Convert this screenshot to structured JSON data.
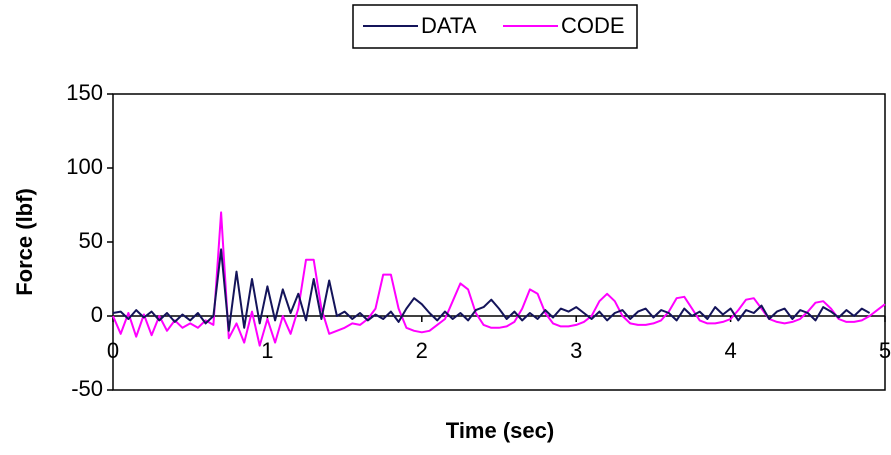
{
  "chart_data": {
    "type": "line",
    "xlabel": "Time (sec)",
    "ylabel": "Force (lbf)",
    "x": [
      0,
      0.05,
      0.1,
      0.15,
      0.2,
      0.25,
      0.3,
      0.35,
      0.4,
      0.45,
      0.5,
      0.55,
      0.6,
      0.65,
      0.7,
      0.75,
      0.8,
      0.85,
      0.9,
      0.95,
      1,
      1.05,
      1.1,
      1.15,
      1.2,
      1.25,
      1.3,
      1.35,
      1.4,
      1.45,
      1.5,
      1.55,
      1.6,
      1.65,
      1.7,
      1.75,
      1.8,
      1.85,
      1.9,
      1.95,
      2,
      2.05,
      2.1,
      2.15,
      2.2,
      2.25,
      2.3,
      2.35,
      2.4,
      2.45,
      2.5,
      2.55,
      2.6,
      2.65,
      2.7,
      2.75,
      2.8,
      2.85,
      2.9,
      2.95,
      3,
      3.05,
      3.1,
      3.15,
      3.2,
      3.25,
      3.3,
      3.35,
      3.4,
      3.45,
      3.5,
      3.55,
      3.6,
      3.65,
      3.7,
      3.75,
      3.8,
      3.85,
      3.9,
      3.95,
      4,
      4.05,
      4.1,
      4.15,
      4.2,
      4.25,
      4.3,
      4.35,
      4.4,
      4.45,
      4.5,
      4.55,
      4.6,
      4.65,
      4.7,
      4.75,
      4.8,
      4.85,
      4.9,
      4.95,
      5
    ],
    "series": [
      {
        "name": "DATA",
        "color": "#14145a",
        "values": [
          2,
          3,
          -2,
          4,
          -1,
          3,
          -3,
          2,
          -4,
          1,
          -3,
          2,
          -5,
          0,
          45,
          -10,
          30,
          -8,
          25,
          -5,
          20,
          -3,
          18,
          2,
          15,
          -3,
          25,
          -2,
          24,
          0,
          3,
          -2,
          2,
          -3,
          1,
          -2,
          3,
          -4,
          5,
          12,
          8,
          2,
          -3,
          3,
          -2,
          2,
          -3,
          4,
          6,
          11,
          5,
          -2,
          3,
          -3,
          2,
          -2,
          4,
          -1,
          5,
          3,
          6,
          2,
          -2,
          3,
          -3,
          2,
          4,
          -2,
          3,
          5,
          -1,
          4,
          2,
          -3,
          5,
          0,
          3,
          -2,
          6,
          1,
          5,
          -3,
          4,
          2,
          7,
          -2,
          3,
          5,
          -2,
          4,
          2,
          -3,
          6,
          3,
          -1,
          4,
          0,
          5,
          2,
          null,
          null
        ]
      },
      {
        "name": "CODE",
        "color": "#ff00ff",
        "values": [
          0,
          -12,
          2,
          -14,
          1,
          -13,
          0,
          -10,
          -3,
          -8,
          -5,
          -8,
          -3,
          -6,
          70,
          -15,
          -5,
          -18,
          3,
          -20,
          -2,
          -18,
          0,
          -12,
          5,
          38,
          38,
          5,
          -12,
          -10,
          -8,
          -5,
          -6,
          -2,
          5,
          28,
          28,
          5,
          -8,
          -10,
          -11,
          -10,
          -6,
          -2,
          10,
          22,
          18,
          2,
          -6,
          -8,
          -8,
          -7,
          -4,
          5,
          18,
          15,
          2,
          -5,
          -7,
          -7,
          -6,
          -4,
          0,
          10,
          15,
          10,
          0,
          -5,
          -6,
          -6,
          -5,
          -3,
          3,
          12,
          13,
          5,
          -3,
          -5,
          -5,
          -4,
          -2,
          4,
          11,
          12,
          5,
          -2,
          -4,
          -5,
          -4,
          -2,
          3,
          9,
          10,
          5,
          -2,
          -4,
          -4,
          -3,
          0,
          4,
          8
        ]
      }
    ],
    "xlim": [
      0,
      5
    ],
    "xticks": [
      0,
      1,
      2,
      3,
      4,
      5
    ],
    "ylim": [
      -50,
      150
    ],
    "yticks": [
      -50,
      0,
      50,
      100,
      150
    ]
  }
}
